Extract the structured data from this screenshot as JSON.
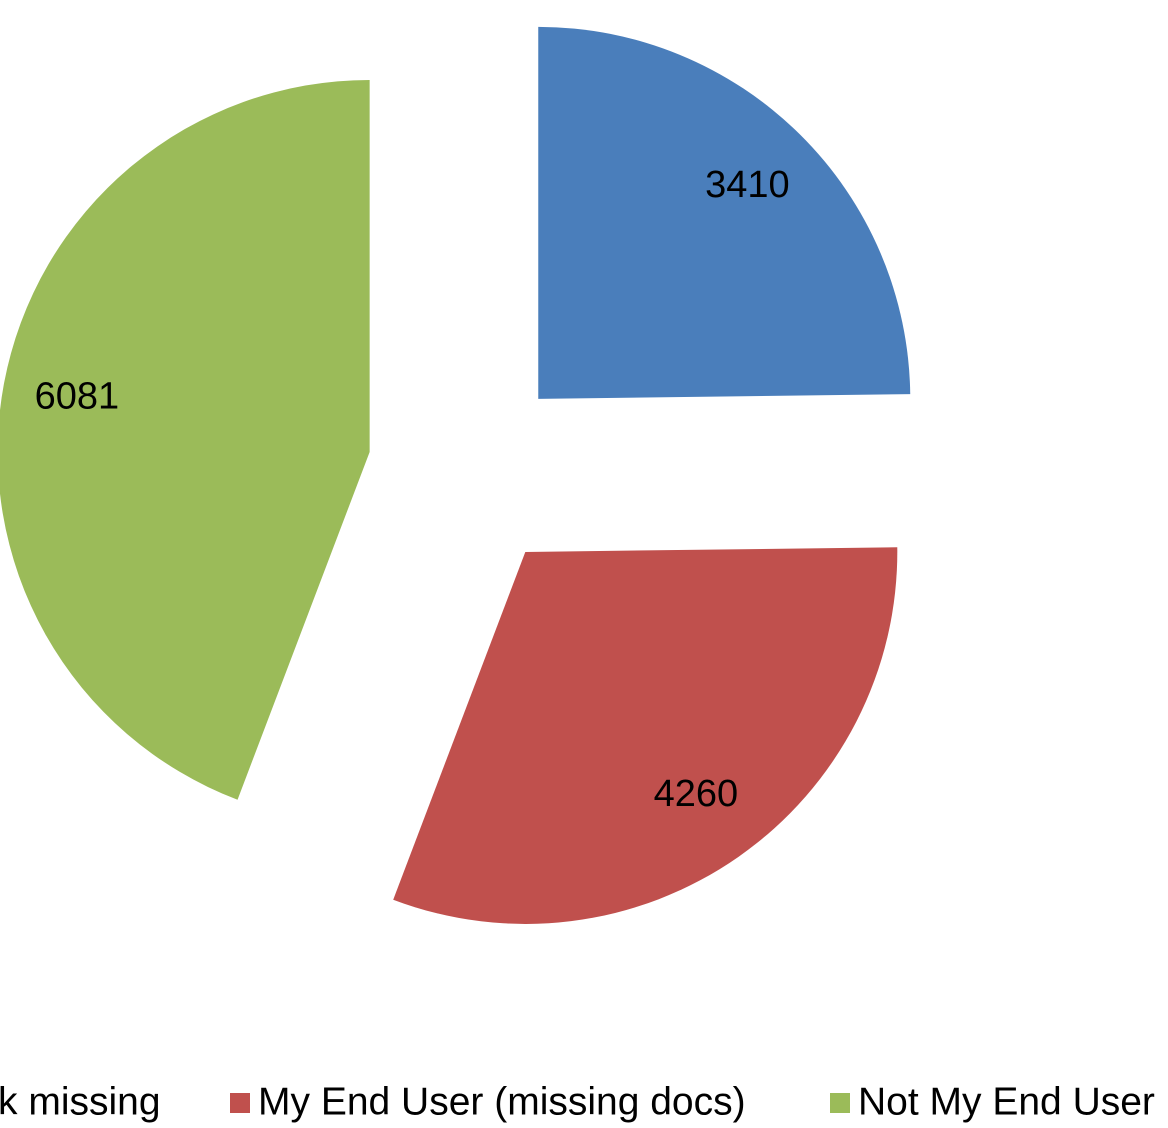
{
  "chart_data": {
    "type": "pie",
    "categories": [
      "k missing",
      "My End User (missing docs)",
      "Not My End User"
    ],
    "values": [
      3410,
      4260,
      6081
    ],
    "colors": [
      "#4a7ebb",
      "#c0504d",
      "#9bbb59"
    ],
    "exploded": true,
    "legend": "bottom"
  }
}
